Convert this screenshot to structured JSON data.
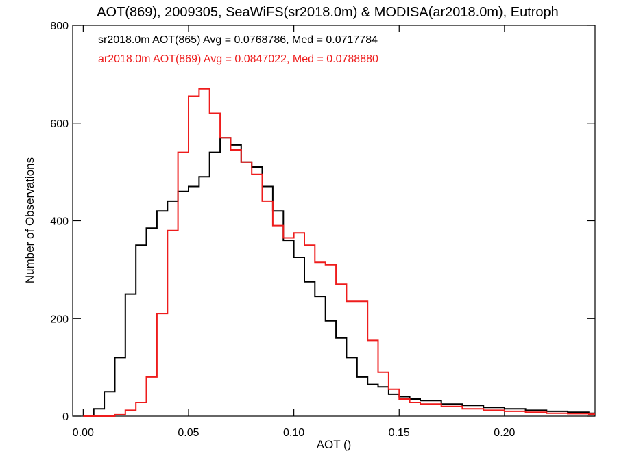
{
  "chart_data": {
    "type": "line",
    "title": "AOT(869), 2009305, SeaWiFS(sr2018.0m) & MODISA(ar2018.0m), Eutroph",
    "xlabel": "AOT ()",
    "ylabel": "Number of Observations",
    "xlim": [
      -0.005,
      0.243
    ],
    "ylim": [
      0,
      800
    ],
    "xticks": [
      "0.00",
      "0.05",
      "0.10",
      "0.15",
      "0.20"
    ],
    "yticks": [
      "0",
      "200",
      "400",
      "600",
      "800"
    ],
    "legend_position": "top-left",
    "series": [
      {
        "name": "sr2018.0m AOT(865) Avg = 0.0768786, Med = 0.0717784",
        "color": "#000000",
        "x": [
          0.0,
          0.005,
          0.01,
          0.015,
          0.02,
          0.025,
          0.03,
          0.035,
          0.04,
          0.045,
          0.05,
          0.055,
          0.06,
          0.065,
          0.07,
          0.075,
          0.08,
          0.085,
          0.09,
          0.095,
          0.1,
          0.105,
          0.11,
          0.115,
          0.12,
          0.125,
          0.13,
          0.135,
          0.14,
          0.145,
          0.15,
          0.155,
          0.16,
          0.17,
          0.18,
          0.19,
          0.2,
          0.21,
          0.22,
          0.23,
          0.24
        ],
        "values": [
          0,
          15,
          50,
          120,
          250,
          350,
          385,
          420,
          440,
          460,
          470,
          490,
          540,
          570,
          555,
          520,
          510,
          470,
          420,
          360,
          325,
          275,
          245,
          195,
          160,
          120,
          80,
          65,
          60,
          45,
          40,
          35,
          32,
          25,
          22,
          18,
          15,
          12,
          10,
          8,
          6
        ]
      },
      {
        "name": "ar2018.0m AOT(869) Avg = 0.0847022, Med = 0.0788880",
        "color": "#ee1c1c",
        "x": [
          0.0,
          0.005,
          0.01,
          0.015,
          0.02,
          0.025,
          0.03,
          0.035,
          0.04,
          0.045,
          0.05,
          0.055,
          0.06,
          0.065,
          0.07,
          0.075,
          0.08,
          0.085,
          0.09,
          0.095,
          0.1,
          0.105,
          0.11,
          0.115,
          0.12,
          0.125,
          0.13,
          0.135,
          0.14,
          0.145,
          0.15,
          0.155,
          0.16,
          0.17,
          0.18,
          0.19,
          0.2,
          0.21,
          0.22,
          0.23,
          0.24
        ],
        "values": [
          0,
          0,
          0,
          3,
          12,
          28,
          80,
          210,
          380,
          540,
          655,
          670,
          620,
          570,
          545,
          520,
          495,
          440,
          390,
          365,
          375,
          350,
          315,
          310,
          270,
          235,
          235,
          155,
          90,
          55,
          35,
          28,
          25,
          20,
          15,
          12,
          10,
          8,
          6,
          5,
          4
        ]
      }
    ]
  }
}
